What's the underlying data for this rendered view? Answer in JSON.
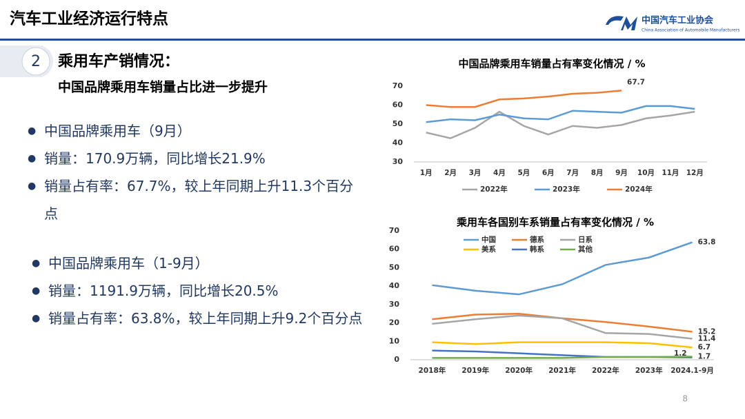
{
  "header": {
    "title": "汽车工业经济运行特点",
    "org_name": "中国汽车工业协会",
    "org_name_en": "China Association of Automobile Manufacturers"
  },
  "section": {
    "number": "2",
    "heading": "乘用车产销情况：",
    "subheading": "中国品牌乘用车销量占比进一步提升"
  },
  "bullets": [
    {
      "heading": "中国品牌乘用车（9月）",
      "items": [
        "销量：170.9万辆，同比增长21.9%",
        "销量占有率：67.7%，较上年同期上升11.3个百分点"
      ]
    },
    {
      "heading": "中国品牌乘用车（1-9月）",
      "items": [
        "销量：1191.9万辆，同比增长20.5%",
        "销量占有率：63.8%，较上年同期上升9.2个百分点"
      ]
    }
  ],
  "page_number": "8",
  "chart_data": [
    {
      "type": "line",
      "title": "中国品牌乘用车销量占有率变化情况 / %",
      "categories": [
        "1月",
        "2月",
        "3月",
        "4月",
        "5月",
        "6月",
        "7月",
        "8月",
        "9月",
        "10月",
        "11月",
        "12月"
      ],
      "series": [
        {
          "name": "2022年",
          "color": "#a5a5a5",
          "values": [
            45.5,
            42.5,
            48,
            56.5,
            49,
            44.5,
            49,
            48,
            49.5,
            53,
            54.5,
            56.5
          ]
        },
        {
          "name": "2023年",
          "color": "#5b9bd5",
          "values": [
            51,
            52.5,
            52,
            55,
            53,
            52.5,
            57,
            56.5,
            56,
            59.5,
            59.5,
            58
          ]
        },
        {
          "name": "2024年",
          "color": "#ed7d31",
          "values": [
            60,
            59,
            59,
            63,
            63.5,
            64.5,
            66,
            66.5,
            67.7,
            null,
            null,
            null
          ],
          "label_last": "right"
        }
      ],
      "ylim": [
        30,
        70
      ],
      "yticks": [
        30,
        40,
        50,
        60,
        70
      ],
      "grid": false,
      "legend": "bottom"
    },
    {
      "type": "line",
      "title": "乘用车各国别车系销量占有率变化情况 / %",
      "categories": [
        "2018年",
        "2019年",
        "2020年",
        "2021年",
        "2022年",
        "2023年",
        "2024.1-9月"
      ],
      "series": [
        {
          "name": "中国",
          "color": "#5b9bd5",
          "values": [
            40.5,
            37.5,
            35.5,
            41,
            51.5,
            55.5,
            63.8
          ],
          "label_last": "right"
        },
        {
          "name": "德系",
          "color": "#ed7d31",
          "values": [
            22,
            24.5,
            25,
            22.5,
            20.5,
            18,
            15.2
          ],
          "label_last": "right"
        },
        {
          "name": "日系",
          "color": "#a5a5a5",
          "values": [
            19.5,
            22,
            24,
            22.5,
            14.5,
            14,
            11.4
          ],
          "label_last": "right"
        },
        {
          "name": "美系",
          "color": "#ffc000",
          "values": [
            9.5,
            8.5,
            9.5,
            9.5,
            9.5,
            9,
            6.7
          ],
          "label_last": "right"
        },
        {
          "name": "韩系",
          "color": "#4472c4",
          "values": [
            5,
            4.5,
            3.5,
            2.5,
            1.5,
            1.5,
            1.2
          ],
          "label_last": "left"
        },
        {
          "name": "其他",
          "color": "#70ad47",
          "values": [
            1,
            1,
            1,
            1,
            1.5,
            1.5,
            1.7
          ],
          "label_last": "right"
        }
      ],
      "ylim": [
        0,
        70
      ],
      "yticks": [
        0,
        10,
        20,
        30,
        40,
        50,
        60,
        70
      ],
      "grid": false,
      "legend": "top-left"
    }
  ]
}
